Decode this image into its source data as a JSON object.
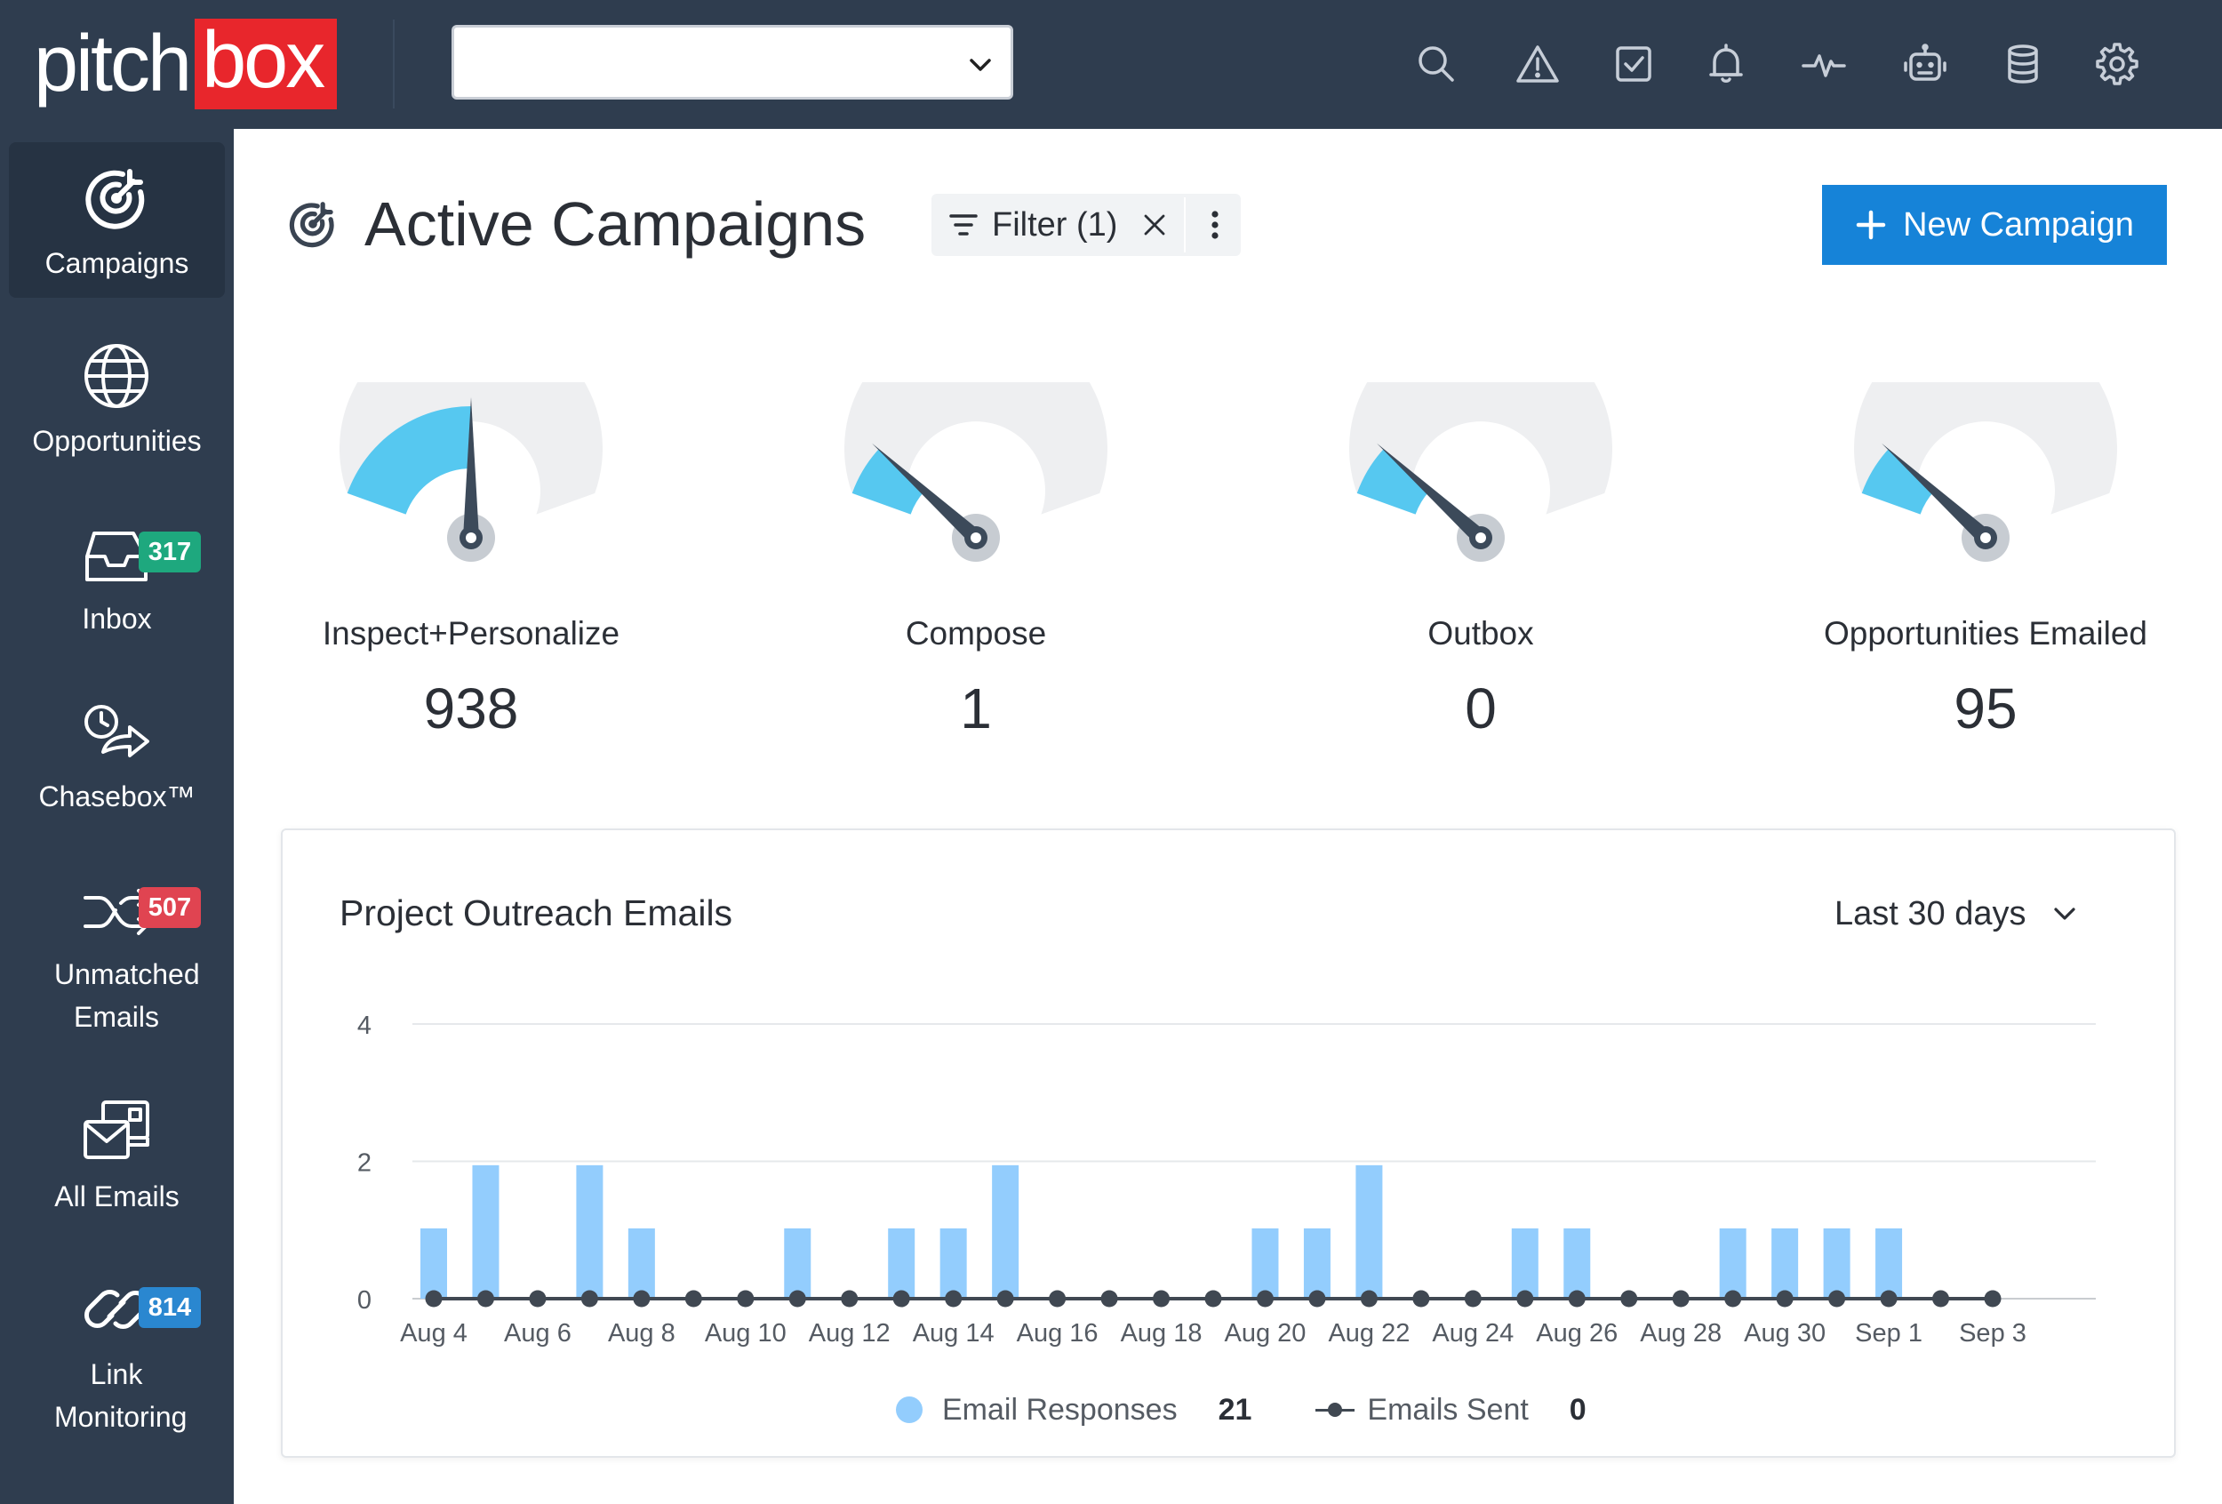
{
  "brand": {
    "part1": "pitch",
    "part2": "box",
    "box_color": "#e8262c"
  },
  "topbar": {
    "project_select_value": "",
    "icons": [
      "search-icon",
      "alert-icon",
      "tasks-icon",
      "bell-icon",
      "activity-icon",
      "robot-icon",
      "database-icon",
      "gear-icon"
    ]
  },
  "sidebar": {
    "items": [
      {
        "label": "Campaigns",
        "icon": "target-icon",
        "active": true
      },
      {
        "label": "Opportunities",
        "icon": "globe-icon"
      },
      {
        "label": "Inbox",
        "icon": "inbox-icon",
        "badge": "317",
        "badge_color": "#1ea87e"
      },
      {
        "label": "Chasebox™",
        "icon": "chasebox-icon"
      },
      {
        "label": "Unmatched Emails",
        "icon": "shuffle-icon",
        "badge": "507",
        "badge_color": "#e04451"
      },
      {
        "label": "All Emails",
        "icon": "all-emails-icon"
      },
      {
        "label": "Link Monitoring",
        "icon": "link-icon",
        "badge": "814",
        "badge_color": "#2a87d0"
      }
    ]
  },
  "header": {
    "title": "Active Campaigns",
    "filter_label": "Filter (1)",
    "new_campaign_label": "New Campaign"
  },
  "gauges": [
    {
      "label": "Inspect+Personalize",
      "value": "938",
      "level": 0.5
    },
    {
      "label": "Compose",
      "value": "1",
      "level": 0.16
    },
    {
      "label": "Outbox",
      "value": "0",
      "level": 0.16
    },
    {
      "label": "Opportunities Emailed",
      "value": "95",
      "level": 0.16
    }
  ],
  "gauge_colors": {
    "fill": "#56c8f0",
    "track": "#eeeff1",
    "needle": "#3c4a5a"
  },
  "card": {
    "title": "Project Outreach Emails",
    "range": "Last 30 days",
    "legend": {
      "responses_label": "Email Responses",
      "responses_total": "21",
      "sent_label": "Emails Sent",
      "sent_total": "0"
    }
  },
  "chart_data": {
    "type": "bar",
    "x": [
      "Aug 4",
      "Aug 5",
      "Aug 6",
      "Aug 7",
      "Aug 8",
      "Aug 9",
      "Aug 10",
      "Aug 11",
      "Aug 12",
      "Aug 13",
      "Aug 14",
      "Aug 15",
      "Aug 16",
      "Aug 17",
      "Aug 18",
      "Aug 19",
      "Aug 20",
      "Aug 21",
      "Aug 22",
      "Aug 23",
      "Aug 24",
      "Aug 25",
      "Aug 26",
      "Aug 27",
      "Aug 28",
      "Aug 29",
      "Aug 30",
      "Aug 31",
      "Sep 1",
      "Sep 2",
      "Sep 3"
    ],
    "tick_labels": [
      "Aug 4",
      "Aug 6",
      "Aug 8",
      "Aug 10",
      "Aug 12",
      "Aug 14",
      "Aug 16",
      "Aug 18",
      "Aug 20",
      "Aug 22",
      "Aug 24",
      "Aug 26",
      "Aug 28",
      "Aug 30",
      "Sep 1",
      "Sep 3"
    ],
    "series": [
      {
        "name": "Email Responses",
        "type": "bar",
        "color": "#93cdfd",
        "values": [
          1,
          2,
          0,
          2,
          1,
          0,
          0,
          1,
          0,
          1,
          1,
          2,
          0,
          0,
          0,
          0,
          1,
          1,
          2,
          0,
          0,
          1,
          1,
          0,
          0,
          1,
          1,
          1,
          1,
          0,
          0
        ]
      },
      {
        "name": "Emails Sent",
        "type": "line",
        "color": "#404852",
        "values": [
          0,
          0,
          0,
          0,
          0,
          0,
          0,
          0,
          0,
          0,
          0,
          0,
          0,
          0,
          0,
          0,
          0,
          0,
          0,
          0,
          0,
          0,
          0,
          0,
          0,
          0,
          0,
          0,
          0,
          0,
          0
        ]
      }
    ],
    "yticks": [
      0,
      2,
      4
    ],
    "ylim": [
      0,
      4
    ],
    "grid": true,
    "legend_position": "bottom"
  }
}
